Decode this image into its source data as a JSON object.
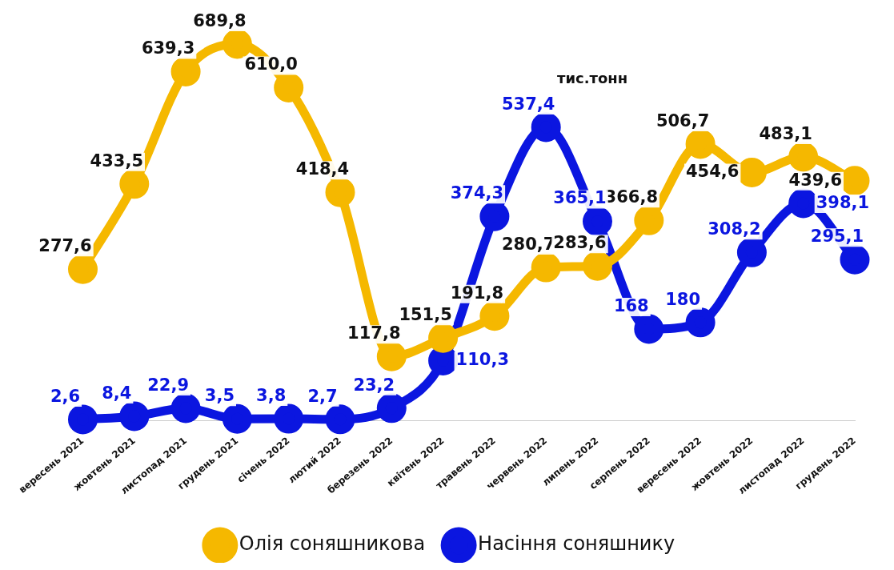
{
  "chart_data": {
    "type": "line",
    "annotations": [
      "тис.тонн"
    ],
    "categories": [
      "вересень 2021",
      "жовтень 2021",
      "листопад 2021",
      "грудень 2021",
      "січень 2022",
      "лютий 2022",
      "березень 2022",
      "квітень 2022",
      "травень 2022",
      "червень 2022",
      "липень 2022",
      "серпень 2022",
      "вересень 2022",
      "жовтень 2022",
      "листопад 2022",
      "грудень 2022"
    ],
    "series": [
      {
        "name": "Олія соняшникова",
        "color": "#f5b800",
        "values": [
          277.6,
          433.5,
          639.3,
          689.8,
          610.0,
          418.4,
          117.8,
          151.5,
          191.8,
          280.7,
          283.6,
          366.8,
          506.7,
          454.6,
          483.1,
          439.6
        ],
        "value_labels": [
          "277,6",
          "433,5",
          "639,3",
          "689,8",
          "610,0",
          "418,4",
          "117,8",
          "151,5",
          "191,8",
          "280,7",
          "283,6",
          "366,8",
          "506,7",
          "454,6",
          "483,1",
          "439,6"
        ]
      },
      {
        "name": "Насіння соняшнику",
        "color": "#0b16e0",
        "values": [
          2.6,
          8.4,
          22.9,
          3.5,
          3.8,
          2.7,
          23.2,
          110.3,
          374.3,
          537.4,
          365.1,
          168,
          180,
          308.2,
          398.1,
          295.1
        ],
        "value_labels": [
          "2,6",
          "8,4",
          "22,9",
          "3,5",
          "3,8",
          "2,7",
          "23,2",
          "110,3",
          "374,3",
          "537,4",
          "365,1",
          "168",
          "180",
          "308,2",
          "398,1",
          "295,1"
        ]
      }
    ],
    "legend": "bottom",
    "grid": false,
    "marker": "circle",
    "line_style": "solid",
    "tick_labels": "x"
  }
}
